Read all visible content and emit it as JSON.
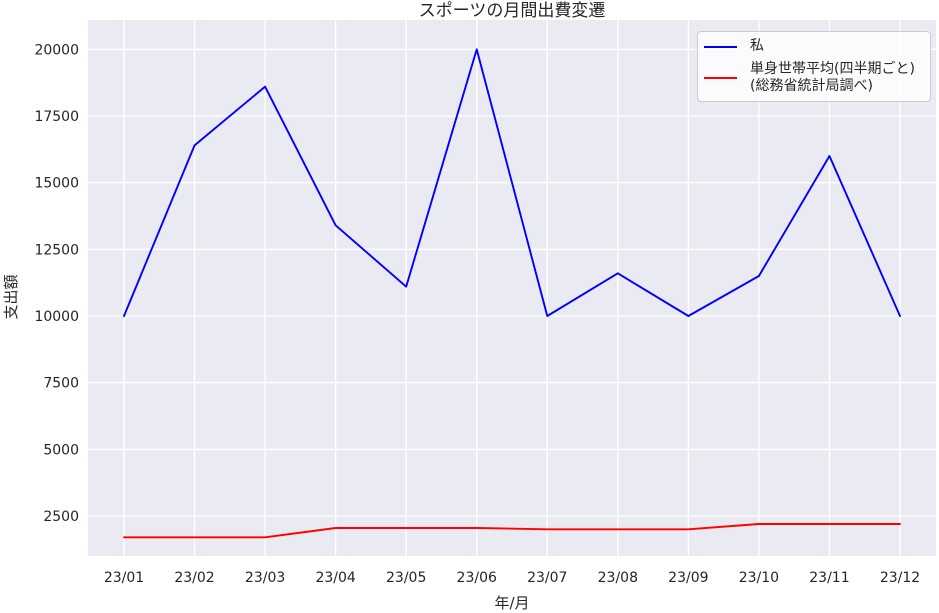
{
  "title": "スポーツの月間出費変遷",
  "colors": {
    "figure_background": "#ffffff",
    "plot_background": "#eaeaf2",
    "grid": "#ffffff",
    "text": "#262626",
    "legend_border": "#cccccc",
    "series_me": "#0000ff",
    "series_average": "#ff0000"
  },
  "chart_data": {
    "type": "line",
    "title": "スポーツの月間出費変遷",
    "xlabel": "年/月",
    "ylabel": "支出額",
    "categories": [
      "23/01",
      "23/02",
      "23/03",
      "23/04",
      "23/05",
      "23/06",
      "23/07",
      "23/08",
      "23/09",
      "23/10",
      "23/11",
      "23/12"
    ],
    "yticks": [
      2500,
      5000,
      7500,
      10000,
      12500,
      15000,
      17500,
      20000
    ],
    "ylim": [
      1000,
      21100
    ],
    "grid": true,
    "legend_position": "upper right",
    "series": [
      {
        "name": "私",
        "color": "#0000ff",
        "values": [
          10000,
          16400,
          18600,
          13400,
          11100,
          20000,
          10000,
          11600,
          10000,
          11500,
          16000,
          10000
        ]
      },
      {
        "name": "単身世帯平均(四半期ごと)\n(総務省統計局調べ)",
        "color": "#ff0000",
        "values": [
          1700,
          1700,
          1700,
          2050,
          2050,
          2050,
          2000,
          2000,
          2000,
          2200,
          2200,
          2200
        ]
      }
    ]
  },
  "legend": {
    "items": [
      {
        "lines": [
          "私"
        ]
      },
      {
        "lines": [
          "単身世帯平均(四半期ごと)",
          "(総務省統計局調べ)"
        ]
      }
    ]
  }
}
